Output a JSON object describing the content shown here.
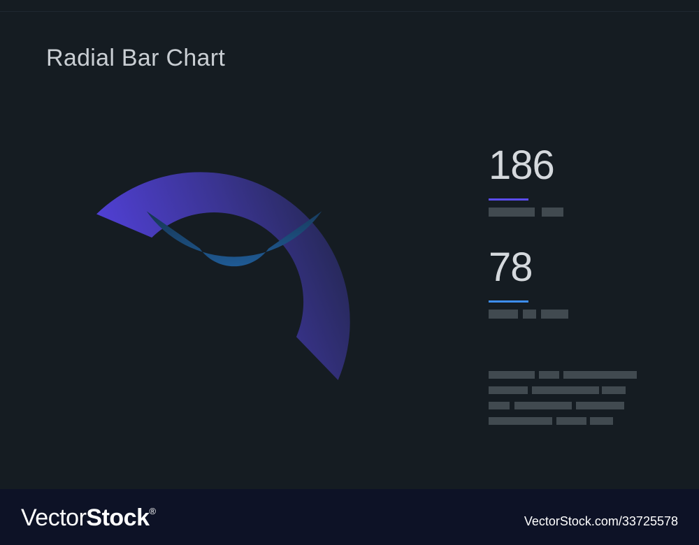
{
  "header": {
    "title": "Radial Bar Chart"
  },
  "stats": [
    {
      "value": "186",
      "accent": "#5b4cf0"
    },
    {
      "value": "78",
      "accent": "#3d8ef0"
    }
  ],
  "chart_data": {
    "type": "radial-bar",
    "title": "Radial Bar Chart",
    "series": [
      {
        "value": 186,
        "color_start": "#5b46f2",
        "color_end": "#2a2f60"
      },
      {
        "value": 78,
        "color_start": "#3a8cf5",
        "color_end": "#0f3450"
      }
    ]
  },
  "watermark": {
    "brand_light": "Vector",
    "brand_bold": "Stock",
    "registered": "®",
    "url": "VectorStock.com/33725578"
  }
}
